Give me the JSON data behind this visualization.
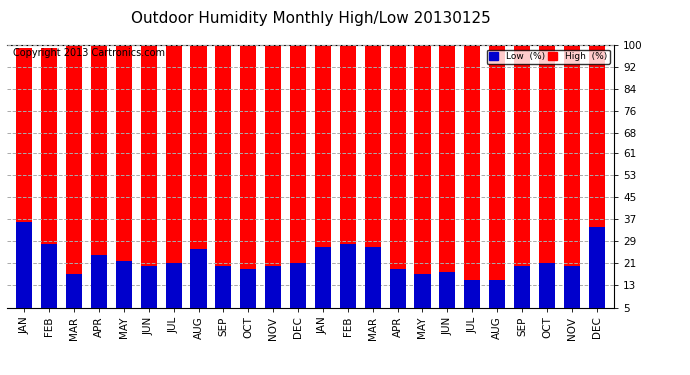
{
  "title": "Outdoor Humidity Monthly High/Low 20130125",
  "copyright": "Copyright 2013 Cartronics.com",
  "legend_low": "Low  (%)",
  "legend_high": "High  (%)",
  "months": [
    "JAN",
    "FEB",
    "MAR",
    "APR",
    "MAY",
    "JUN",
    "JUL",
    "AUG",
    "SEP",
    "OCT",
    "NOV",
    "DEC",
    "JAN",
    "FEB",
    "MAR",
    "APR",
    "MAY",
    "JUN",
    "JUL",
    "AUG",
    "SEP",
    "OCT",
    "NOV",
    "DEC"
  ],
  "high_values": [
    99,
    99,
    100,
    100,
    100,
    100,
    100,
    100,
    100,
    100,
    100,
    100,
    100,
    100,
    100,
    100,
    100,
    100,
    100,
    100,
    100,
    100,
    100,
    100
  ],
  "low_values": [
    36,
    28,
    17,
    24,
    22,
    20,
    21,
    26,
    20,
    19,
    20,
    21,
    27,
    28,
    27,
    19,
    17,
    18,
    15,
    15,
    20,
    21,
    20,
    34
  ],
  "yticks": [
    5,
    13,
    21,
    29,
    37,
    45,
    53,
    61,
    68,
    76,
    84,
    92,
    100
  ],
  "ymin": 5,
  "ymax": 100,
  "bar_color_high": "#ff0000",
  "bar_color_low": "#0000cc",
  "bg_color": "#ffffff",
  "grid_color": "#aaaaaa",
  "title_fontsize": 11,
  "copyright_fontsize": 7,
  "tick_fontsize": 7.5,
  "bar_width": 0.65
}
